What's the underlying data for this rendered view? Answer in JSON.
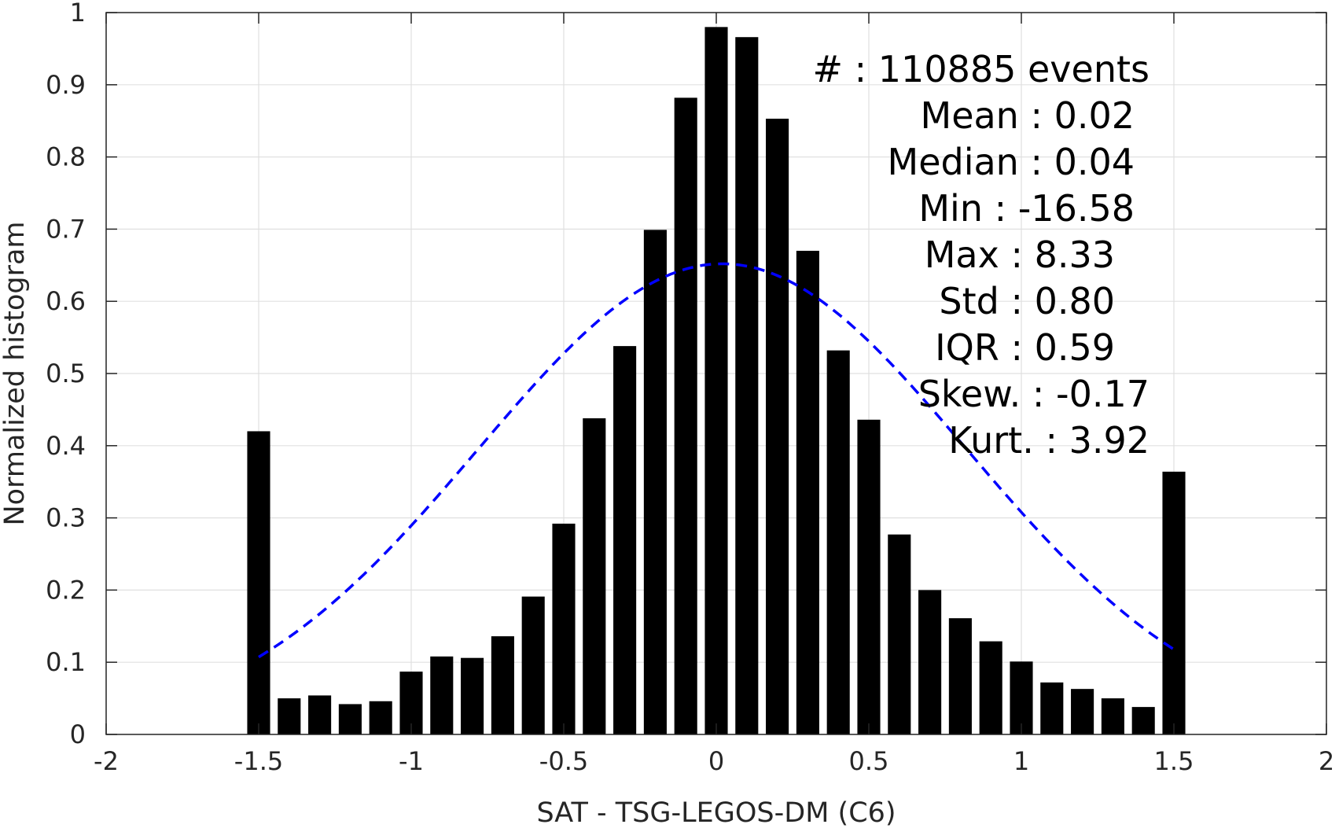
{
  "chart_data": {
    "type": "bar",
    "title": "",
    "xlabel": "SAT - TSG-LEGOS-DM (C6)",
    "ylabel": "Normalized histogram",
    "xlim": [
      -2,
      2
    ],
    "ylim": [
      0,
      1
    ],
    "grid": true,
    "bar_color": "#000000",
    "x_ticks": [
      -2,
      -1.5,
      -1,
      -0.5,
      0,
      0.5,
      1,
      1.5,
      2
    ],
    "x_tick_labels": [
      "-2",
      "-1.5",
      "-1",
      "-0.5",
      "0",
      "0.5",
      "1",
      "1.5",
      "2"
    ],
    "y_ticks": [
      0,
      0.1,
      0.2,
      0.3,
      0.4,
      0.5,
      0.6,
      0.7,
      0.8,
      0.9,
      1
    ],
    "y_tick_labels": [
      "0",
      "0.1",
      "0.2",
      "0.3",
      "0.4",
      "0.5",
      "0.6",
      "0.7",
      "0.8",
      "0.9",
      "1"
    ],
    "bars": [
      {
        "x": -1.5,
        "value": 0.42
      },
      {
        "x": -1.4,
        "value": 0.05
      },
      {
        "x": -1.3,
        "value": 0.054
      },
      {
        "x": -1.2,
        "value": 0.042
      },
      {
        "x": -1.1,
        "value": 0.046
      },
      {
        "x": -1.0,
        "value": 0.087
      },
      {
        "x": -0.9,
        "value": 0.108
      },
      {
        "x": -0.8,
        "value": 0.106
      },
      {
        "x": -0.7,
        "value": 0.136
      },
      {
        "x": -0.6,
        "value": 0.191
      },
      {
        "x": -0.5,
        "value": 0.292
      },
      {
        "x": -0.4,
        "value": 0.438
      },
      {
        "x": -0.3,
        "value": 0.538
      },
      {
        "x": -0.2,
        "value": 0.699
      },
      {
        "x": -0.1,
        "value": 0.882
      },
      {
        "x": 0.0,
        "value": 0.98
      },
      {
        "x": 0.1,
        "value": 0.966
      },
      {
        "x": 0.2,
        "value": 0.853
      },
      {
        "x": 0.3,
        "value": 0.67
      },
      {
        "x": 0.4,
        "value": 0.532
      },
      {
        "x": 0.5,
        "value": 0.436
      },
      {
        "x": 0.6,
        "value": 0.277
      },
      {
        "x": 0.7,
        "value": 0.2
      },
      {
        "x": 0.8,
        "value": 0.161
      },
      {
        "x": 0.9,
        "value": 0.129
      },
      {
        "x": 1.0,
        "value": 0.101
      },
      {
        "x": 1.1,
        "value": 0.072
      },
      {
        "x": 1.2,
        "value": 0.063
      },
      {
        "x": 1.3,
        "value": 0.05
      },
      {
        "x": 1.4,
        "value": 0.038
      },
      {
        "x": 1.5,
        "value": 0.364
      }
    ],
    "fit_curve": {
      "style": "dashed",
      "color": "#0000ff",
      "mean": 0.02,
      "std": 0.8,
      "peak": 0.652,
      "x_range": [
        -1.5,
        1.5
      ]
    },
    "annotations": [
      "#  : 110885 events",
      "Mean : 0.02",
      "Median : 0.04",
      "Min : -16.58",
      "Max : 8.33",
      "Std : 0.80",
      "IQR : 0.59",
      "Skew. : -0.17",
      "Kurt. : 3.92"
    ]
  }
}
